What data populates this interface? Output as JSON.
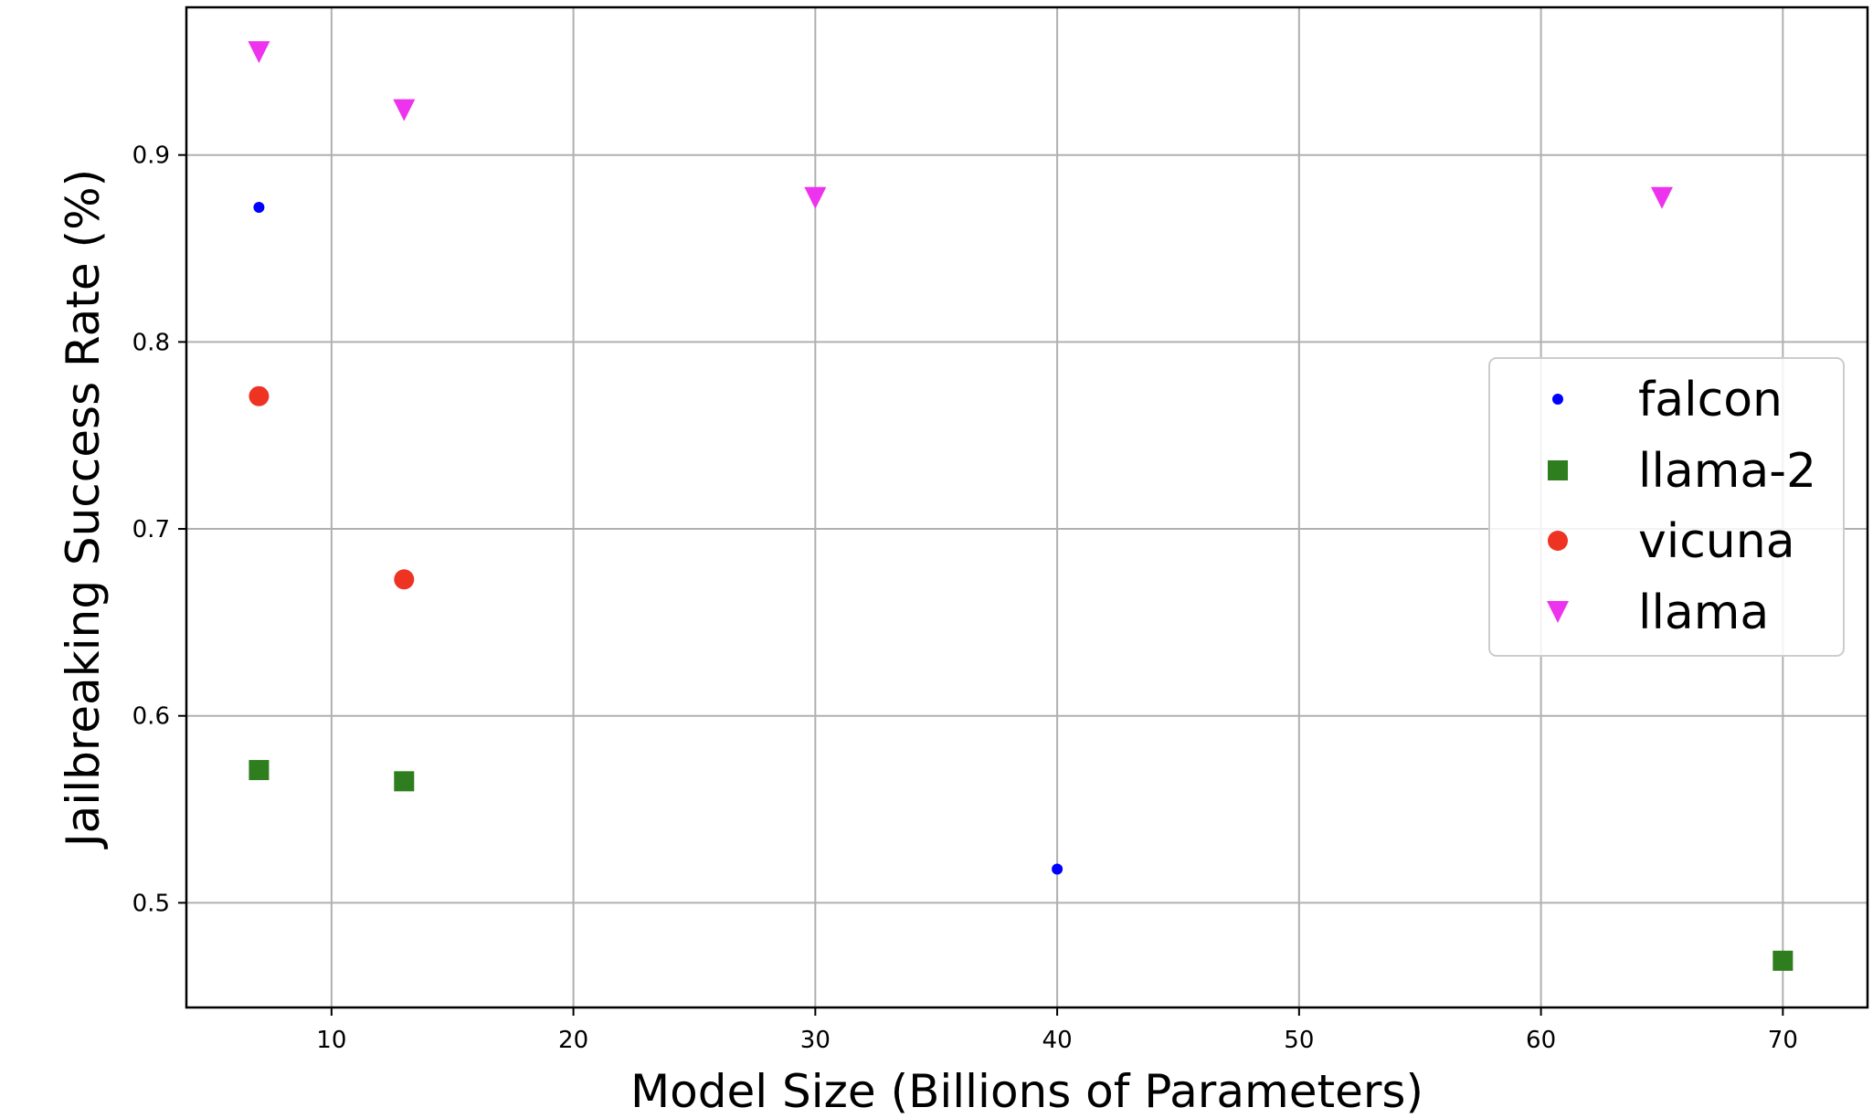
{
  "chart_data": {
    "type": "scatter",
    "title": "",
    "xlabel": "Model Size (Billions of Parameters)",
    "ylabel": "Jailbreaking Success Rate (%)",
    "xlim": [
      4,
      73.5
    ],
    "ylim": [
      0.444,
      0.979
    ],
    "xticks": [
      10,
      20,
      30,
      40,
      50,
      60,
      70
    ],
    "yticks": [
      0.5,
      0.6,
      0.7,
      0.8,
      0.9
    ],
    "xtick_labels": [
      "10",
      "20",
      "30",
      "40",
      "50",
      "60",
      "70"
    ],
    "ytick_labels": [
      "0.5",
      "0.6",
      "0.7",
      "0.8",
      "0.9"
    ],
    "grid": true,
    "legend": {
      "position": "center-right",
      "entries": [
        "falcon",
        "llama-2",
        "vicuna",
        "llama"
      ]
    },
    "series": [
      {
        "name": "falcon",
        "marker": "small-circle",
        "color": "#0000ff",
        "points": [
          {
            "x": 7,
            "y": 0.872
          },
          {
            "x": 40,
            "y": 0.518
          }
        ]
      },
      {
        "name": "llama-2",
        "marker": "square",
        "color": "#2e7d1e",
        "points": [
          {
            "x": 7,
            "y": 0.571
          },
          {
            "x": 13,
            "y": 0.565
          },
          {
            "x": 70,
            "y": 0.469
          }
        ]
      },
      {
        "name": "vicuna",
        "marker": "circle",
        "color": "#ee3323",
        "points": [
          {
            "x": 7,
            "y": 0.771
          },
          {
            "x": 13,
            "y": 0.673
          }
        ]
      },
      {
        "name": "llama",
        "marker": "triangle-down",
        "color": "#ee33ee",
        "points": [
          {
            "x": 7,
            "y": 0.955
          },
          {
            "x": 13,
            "y": 0.924
          },
          {
            "x": 30,
            "y": 0.877
          },
          {
            "x": 65,
            "y": 0.877
          }
        ]
      }
    ]
  }
}
